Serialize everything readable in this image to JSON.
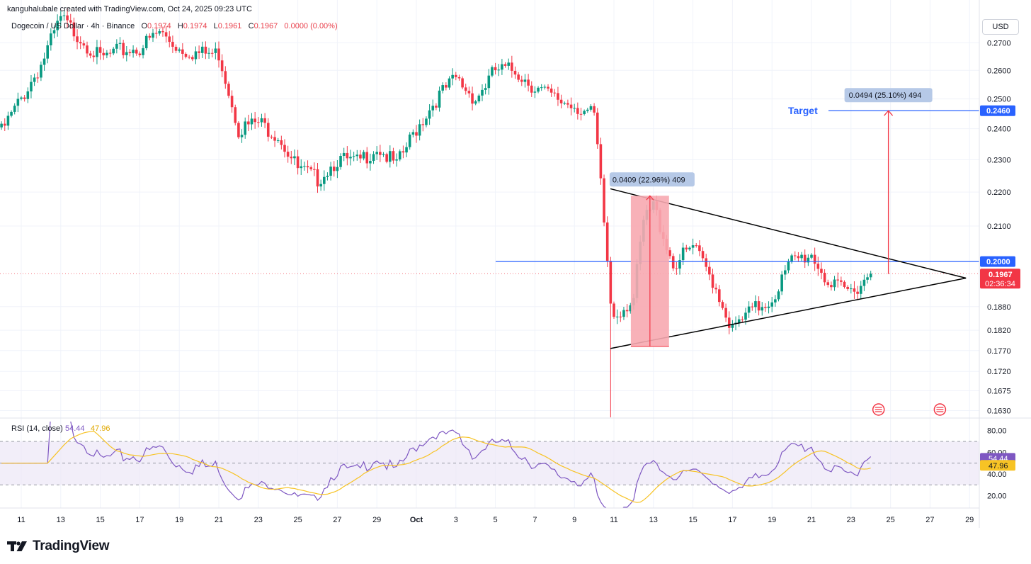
{
  "attribution": "kanguhalubale created with TradingView.com, Oct 24, 2025 09:23 UTC",
  "symbol": {
    "name": "Dogecoin / US Dollar · 4h · Binance",
    "o_label": "O",
    "o_value": "0.1974",
    "h_label": "H",
    "h_value": "0.1974",
    "l_label": "L",
    "l_value": "0.1961",
    "c_label": "C",
    "c_value": "0.1967",
    "change": "0.0000 (0.00%)"
  },
  "currency": "USD",
  "brand": "TradingView",
  "colors": {
    "up": "#089981",
    "down": "#f23645",
    "level_line": "#2962ff",
    "target_arrow": "#f23645",
    "rsi_line": "#7e57c2",
    "rsi_ma": "#f7c325",
    "pattern": "#000000",
    "highlight": "#f7a9b0"
  },
  "chart_data": {
    "type": "candlestick",
    "interval": "4h",
    "price_axis": {
      "ticks": [
        "0.2700",
        "0.2600",
        "0.2500",
        "0.2400",
        "0.2300",
        "0.2200",
        "0.2100",
        "0.1880",
        "0.1820",
        "0.1770",
        "0.1720",
        "0.1675",
        "0.1630"
      ],
      "scale": "log",
      "ylim": [
        0.1615,
        0.2745
      ]
    },
    "time_axis": {
      "ticks": [
        "11",
        "13",
        "15",
        "17",
        "19",
        "21",
        "23",
        "25",
        "27",
        "29",
        "Oct",
        "3",
        "5",
        "7",
        "9",
        "11",
        "13",
        "15",
        "17",
        "19",
        "21",
        "23",
        "25",
        "27",
        "29"
      ]
    },
    "close_anchors": [
      [
        "Sep 10",
        0.239
      ],
      [
        "Sep 11",
        0.25
      ],
      [
        "Sep 12",
        0.262
      ],
      [
        "Sep 13",
        0.279
      ],
      [
        "Sep 14",
        0.272
      ],
      [
        "Sep 15",
        0.264
      ],
      [
        "Sep 16",
        0.267
      ],
      [
        "Sep 17",
        0.268
      ],
      [
        "Sep 18",
        0.274
      ],
      [
        "Sep 19",
        0.268
      ],
      [
        "Sep 20",
        0.266
      ],
      [
        "Sep 21",
        0.266
      ],
      [
        "Sep 22",
        0.24
      ],
      [
        "Sep 23",
        0.242
      ],
      [
        "Sep 24",
        0.238
      ],
      [
        "Sep 25",
        0.227
      ],
      [
        "Sep 26",
        0.224
      ],
      [
        "Sep 27",
        0.23
      ],
      [
        "Sep 28",
        0.229
      ],
      [
        "Sep 29",
        0.234
      ],
      [
        "Sep 30",
        0.228
      ],
      [
        "Oct 1",
        0.24
      ],
      [
        "Oct 2",
        0.25
      ],
      [
        "Oct 3",
        0.257
      ],
      [
        "Oct 4",
        0.25
      ],
      [
        "Oct 5",
        0.26
      ],
      [
        "Oct 6",
        0.26
      ],
      [
        "Oct 7",
        0.254
      ],
      [
        "Oct 8",
        0.25
      ],
      [
        "Oct 9",
        0.248
      ],
      [
        "Oct 10",
        0.244
      ],
      [
        "Oct 10 20:00",
        0.189
      ],
      [
        "Oct 11",
        0.186
      ],
      [
        "Oct 12",
        0.19
      ],
      [
        "Oct 12 12:00",
        0.211
      ],
      [
        "Oct 13",
        0.216
      ],
      [
        "Oct 14",
        0.199
      ],
      [
        "Oct 15",
        0.204
      ],
      [
        "Oct 16",
        0.195
      ],
      [
        "Oct 17",
        0.182
      ],
      [
        "Oct 18",
        0.187
      ],
      [
        "Oct 19",
        0.19
      ],
      [
        "Oct 20",
        0.2
      ],
      [
        "Oct 21",
        0.202
      ],
      [
        "Oct 22",
        0.193
      ],
      [
        "Oct 23",
        0.192
      ],
      [
        "Oct 24",
        0.1967
      ]
    ],
    "last_close": "0.1967",
    "last_close_countdown": "02:36:34",
    "horizontal_levels": [
      {
        "value": 0.2,
        "label": "0.2000"
      },
      {
        "value": 0.246,
        "label": "0.2460"
      }
    ],
    "target_label": "Target",
    "annotations": [
      {
        "text": "0.0409 (22.96%) 409",
        "from": 0.178,
        "to": 0.2189
      },
      {
        "text": "0.0494 (25.10%) 494",
        "from": 0.1966,
        "to": 0.246
      }
    ],
    "symmetrical_triangle": {
      "upper": [
        [
          "Oct 11",
          0.221
        ],
        [
          "Oct 29",
          0.1955
        ]
      ],
      "lower": [
        [
          "Oct 11",
          0.1775
        ],
        [
          "Oct 29",
          0.1955
        ]
      ]
    },
    "rsi": {
      "label": "RSI (14, close)",
      "value": "54.44",
      "ma_value": "47.96",
      "bands": [
        70,
        30
      ],
      "ticks": [
        "80.00",
        "60.00",
        "40.00",
        "20.00"
      ]
    }
  }
}
